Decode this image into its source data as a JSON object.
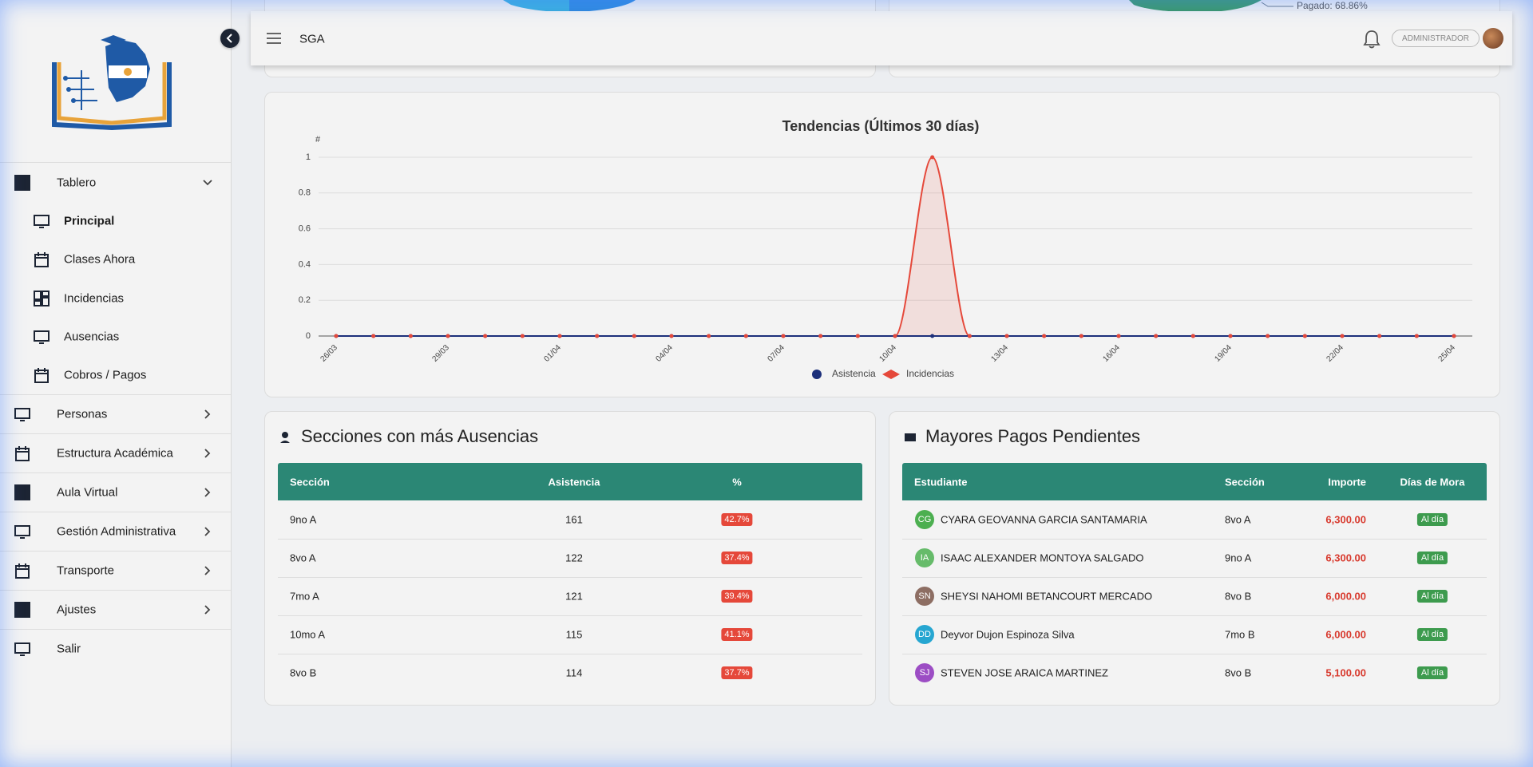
{
  "header": {
    "title": "SGA",
    "role": "ADMINISTRADOR"
  },
  "top_cards": {
    "donut_label": "Pagado: 68.86%"
  },
  "sidebar": {
    "menu": [
      {
        "label": "Tablero",
        "children": [
          "Principal",
          "Clases Ahora",
          "Incidencias",
          "Ausencias",
          "Cobros / Pagos"
        ]
      },
      {
        "label": "Personas"
      },
      {
        "label": "Estructura Académica"
      },
      {
        "label": "Aula Virtual"
      },
      {
        "label": "Gestión Administrativa"
      },
      {
        "label": "Transporte"
      },
      {
        "label": "Ajustes"
      },
      {
        "label": "Salir"
      }
    ]
  },
  "chart_data": {
    "type": "line",
    "title": "Tendencias (Últimos 30 días)",
    "y_label": "#",
    "categories": [
      "26/03",
      null,
      null,
      "29/03",
      null,
      null,
      "01/04",
      null,
      null,
      "04/04",
      null,
      null,
      "07/04",
      null,
      null,
      "10/04",
      null,
      null,
      "13/04",
      null,
      null,
      "16/04",
      null,
      null,
      "19/04",
      null,
      null,
      "22/04",
      null,
      null,
      "25/04"
    ],
    "series": [
      {
        "name": "Asistencia",
        "color": "#1c2f7a",
        "values": [
          0,
          0,
          0,
          0,
          0,
          0,
          0,
          0,
          0,
          0,
          0,
          0,
          0,
          0,
          0,
          0,
          0,
          0,
          0,
          0,
          0,
          0,
          0,
          0,
          0,
          0,
          0,
          0,
          0,
          0,
          0
        ]
      },
      {
        "name": "Incidencias",
        "color": "#e5483a",
        "values": [
          0,
          0,
          0,
          0,
          0,
          0,
          0,
          0,
          0,
          0,
          0,
          0,
          0,
          0,
          0,
          0,
          1,
          0,
          0,
          0,
          0,
          0,
          0,
          0,
          0,
          0,
          0,
          0,
          0,
          0,
          0
        ]
      }
    ],
    "ylim": [
      0,
      1
    ],
    "yticks": [
      0,
      0.2,
      0.4,
      0.6,
      0.8,
      1
    ],
    "grid": true,
    "legend": "bottom"
  },
  "absences": {
    "title": "Secciones con más Ausencias",
    "columns": [
      "Sección",
      "Asistencia",
      "%"
    ],
    "rows": [
      [
        "9no A",
        161,
        "42.7%"
      ],
      [
        "8vo A",
        122,
        "37.4%"
      ],
      [
        "7mo A",
        121,
        "39.4%"
      ],
      [
        "10mo A",
        115,
        "41.1%"
      ],
      [
        "8vo B",
        114,
        "37.7%"
      ]
    ]
  },
  "payments": {
    "title": "Mayores Pagos Pendientes",
    "columns": [
      "Estudiante",
      "Sección",
      "Importe",
      "Días de Mora"
    ],
    "rows": [
      {
        "initials": "CG",
        "avatar_color": "#4caf50",
        "name": "CYARA GEOVANNA GARCIA SANTAMARIA",
        "section": "8vo A",
        "amount": "6,300.00",
        "status": "Al día"
      },
      {
        "initials": "IA",
        "avatar_color": "#66bb6a",
        "name": "ISAAC ALEXANDER MONTOYA SALGADO",
        "section": "9no A",
        "amount": "6,300.00",
        "status": "Al día"
      },
      {
        "initials": "SN",
        "avatar_color": "#8d6e63",
        "name": "SHEYSI NAHOMI BETANCOURT MERCADO",
        "section": "8vo B",
        "amount": "6,000.00",
        "status": "Al día"
      },
      {
        "initials": "DD",
        "avatar_color": "#26a6d1",
        "name": "Deyvor Dujon Espinoza Silva",
        "section": "7mo B",
        "amount": "6,000.00",
        "status": "Al día"
      },
      {
        "initials": "SJ",
        "avatar_color": "#9c4dc4",
        "name": "STEVEN JOSE ARAICA MARTINEZ",
        "section": "8vo B",
        "amount": "5,100.00",
        "status": "Al día"
      }
    ]
  }
}
